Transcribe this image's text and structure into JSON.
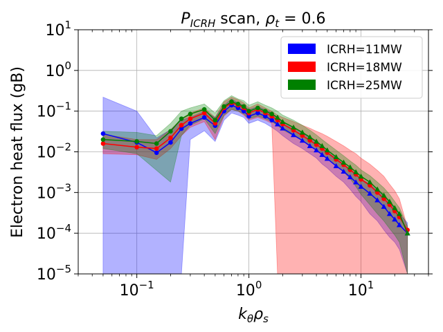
{
  "chart_data": {
    "type": "line",
    "title_main": "P",
    "title_sub": "ICRH",
    "title_rest": " scan, ",
    "title_rho": "ρ",
    "title_rho_sub": "t",
    "title_eq": " = 0.6",
    "xlabel_k": "k",
    "xlabel_theta": "θ",
    "xlabel_rho": "ρ",
    "xlabel_s": "s",
    "ylabel": "Electron heat flux (gB)",
    "x_scale": "log",
    "y_scale": "log",
    "xlim": [
      0.03,
      40
    ],
    "ylim": [
      1e-05,
      10
    ],
    "x_ticks": [
      {
        "value": 0.1,
        "base": "10",
        "exp": "−1"
      },
      {
        "value": 1,
        "base": "10",
        "exp": "0"
      },
      {
        "value": 10,
        "base": "10",
        "exp": "1"
      }
    ],
    "y_ticks": [
      {
        "value": 1e-05,
        "base": "10",
        "exp": "−5"
      },
      {
        "value": 0.0001,
        "base": "10",
        "exp": "−4"
      },
      {
        "value": 0.001,
        "base": "10",
        "exp": "−3"
      },
      {
        "value": 0.01,
        "base": "10",
        "exp": "−2"
      },
      {
        "value": 0.1,
        "base": "10",
        "exp": "−1"
      },
      {
        "value": 1,
        "base": "10",
        "exp": "0"
      },
      {
        "value": 10,
        "base": "10",
        "exp": "1"
      }
    ],
    "grid": true,
    "legend_position": "top-right",
    "series": [
      {
        "name": "ICRH=11MW",
        "color": "#0000ff",
        "band_alpha": 0.3,
        "x": [
          0.05,
          0.1,
          0.15,
          0.2,
          0.25,
          0.3,
          0.4,
          0.5,
          0.6,
          0.7,
          0.8,
          0.9,
          1.0,
          1.2,
          1.4,
          1.6,
          1.8,
          2.0,
          2.5,
          3.0,
          3.5,
          4.0,
          4.5,
          5.0,
          6.0,
          7.0,
          8.0,
          9.0,
          10.0,
          12.0,
          14.0,
          16.0,
          18.0,
          20.0,
          22.0,
          26.0
        ],
        "y": [
          0.028,
          0.017,
          0.0095,
          0.017,
          0.037,
          0.05,
          0.07,
          0.044,
          0.1,
          0.14,
          0.12,
          0.1,
          0.075,
          0.09,
          0.075,
          0.06,
          0.048,
          0.038,
          0.026,
          0.019,
          0.014,
          0.011,
          0.0085,
          0.0068,
          0.0045,
          0.0033,
          0.0024,
          0.0018,
          0.0014,
          0.00095,
          0.00065,
          0.00045,
          0.0003,
          0.00022,
          0.00016,
          0.0001
        ],
        "upper": [
          0.22,
          0.1,
          0.022,
          0.035,
          0.06,
          0.07,
          0.1,
          0.07,
          0.14,
          0.2,
          0.16,
          0.14,
          0.11,
          0.13,
          0.11,
          0.09,
          0.07,
          0.055,
          0.04,
          0.029,
          0.022,
          0.017,
          0.013,
          0.01,
          0.007,
          0.005,
          0.0038,
          0.0029,
          0.0022,
          0.0016,
          0.0011,
          0.0008,
          0.00055,
          0.0004,
          0.0003,
          0.00018
        ],
        "lower": [
          1e-05,
          1e-05,
          1e-05,
          1e-05,
          1e-05,
          0.02,
          0.033,
          0.018,
          0.06,
          0.09,
          0.08,
          0.07,
          0.05,
          0.06,
          0.05,
          0.04,
          0.032,
          0.025,
          0.016,
          0.012,
          0.009,
          0.007,
          0.005,
          0.004,
          0.0025,
          0.0018,
          0.0012,
          0.0008,
          0.0006,
          0.0003,
          0.0002,
          0.00012,
          8e-05,
          6e-05,
          4e-05,
          1e-05
        ],
        "markers": "circle-then-triangle"
      },
      {
        "name": "ICRH=18MW",
        "color": "#ff0000",
        "band_alpha": 0.3,
        "x": [
          0.05,
          0.1,
          0.15,
          0.2,
          0.25,
          0.3,
          0.4,
          0.5,
          0.6,
          0.7,
          0.8,
          0.9,
          1.0,
          1.2,
          1.4,
          1.6,
          1.8,
          2.0,
          2.5,
          3.0,
          3.5,
          4.0,
          4.5,
          5.0,
          6.0,
          7.0,
          8.0,
          9.0,
          10.0,
          12.0,
          14.0,
          16.0,
          18.0,
          20.0,
          22.0,
          26.0
        ],
        "y": [
          0.016,
          0.013,
          0.012,
          0.022,
          0.045,
          0.065,
          0.09,
          0.05,
          0.12,
          0.16,
          0.14,
          0.12,
          0.09,
          0.11,
          0.09,
          0.075,
          0.06,
          0.048,
          0.034,
          0.025,
          0.019,
          0.015,
          0.012,
          0.0095,
          0.0065,
          0.0048,
          0.0036,
          0.0028,
          0.0021,
          0.0015,
          0.001,
          0.0007,
          0.0005,
          0.00035,
          0.00025,
          0.00012
        ],
        "upper": [
          0.027,
          0.02,
          0.02,
          0.035,
          0.065,
          0.09,
          0.12,
          0.07,
          0.17,
          0.22,
          0.19,
          0.16,
          0.12,
          0.15,
          0.12,
          0.1,
          0.08,
          0.07,
          0.055,
          0.045,
          0.038,
          0.032,
          0.028,
          0.024,
          0.018,
          0.014,
          0.011,
          0.009,
          0.007,
          0.005,
          0.0035,
          0.0025,
          0.0016,
          0.0011,
          0.0007,
          0.00014
        ],
        "lower": [
          0.009,
          0.0085,
          0.0065,
          0.012,
          0.025,
          0.04,
          0.055,
          0.02,
          0.075,
          0.11,
          0.1,
          0.08,
          0.06,
          0.07,
          0.06,
          0.05,
          1e-05,
          1e-05,
          1e-05,
          1e-05,
          1e-05,
          1e-05,
          1e-05,
          1e-05,
          1e-05,
          1e-05,
          1e-05,
          1e-05,
          1e-05,
          1e-05,
          1e-05,
          1e-05,
          1e-05,
          1e-05,
          1e-05,
          1e-05
        ],
        "markers": "circle"
      },
      {
        "name": "ICRH=25MW",
        "color": "#008000",
        "band_alpha": 0.3,
        "x": [
          0.05,
          0.1,
          0.15,
          0.2,
          0.25,
          0.3,
          0.4,
          0.5,
          0.6,
          0.7,
          0.8,
          0.9,
          1.0,
          1.2,
          1.4,
          1.6,
          1.8,
          2.0,
          2.5,
          3.0,
          3.5,
          4.0,
          4.5,
          5.0,
          6.0,
          7.0,
          8.0,
          9.0,
          10.0,
          12.0,
          14.0,
          16.0,
          18.0,
          20.0,
          22.0,
          26.0
        ],
        "y": [
          0.02,
          0.018,
          0.016,
          0.032,
          0.065,
          0.085,
          0.11,
          0.06,
          0.13,
          0.17,
          0.15,
          0.13,
          0.1,
          0.12,
          0.1,
          0.085,
          0.07,
          0.055,
          0.04,
          0.03,
          0.023,
          0.018,
          0.014,
          0.011,
          0.0075,
          0.0055,
          0.0042,
          0.0032,
          0.0025,
          0.0018,
          0.0012,
          0.00085,
          0.0006,
          0.00042,
          0.0003,
          0.0001
        ],
        "upper": [
          0.032,
          0.03,
          0.025,
          0.05,
          0.1,
          0.12,
          0.15,
          0.09,
          0.18,
          0.24,
          0.2,
          0.18,
          0.14,
          0.17,
          0.14,
          0.12,
          0.1,
          0.08,
          0.06,
          0.045,
          0.034,
          0.026,
          0.02,
          0.016,
          0.011,
          0.008,
          0.006,
          0.0047,
          0.0036,
          0.0026,
          0.0018,
          0.0013,
          0.0009,
          0.0006,
          0.00042,
          0.00015
        ],
        "lower": [
          0.012,
          0.009,
          0.0035,
          0.0018,
          0.025,
          0.045,
          0.065,
          0.028,
          0.08,
          0.11,
          0.1,
          0.085,
          0.065,
          0.075,
          0.065,
          0.055,
          0.045,
          0.035,
          0.025,
          0.019,
          0.014,
          0.011,
          0.0085,
          0.0068,
          0.0045,
          0.0032,
          0.0022,
          0.0014,
          0.0009,
          0.0005,
          0.0003,
          0.0002,
          0.00013,
          9e-05,
          6e-05,
          1e-05
        ],
        "markers": "circle-then-triangle"
      }
    ]
  }
}
